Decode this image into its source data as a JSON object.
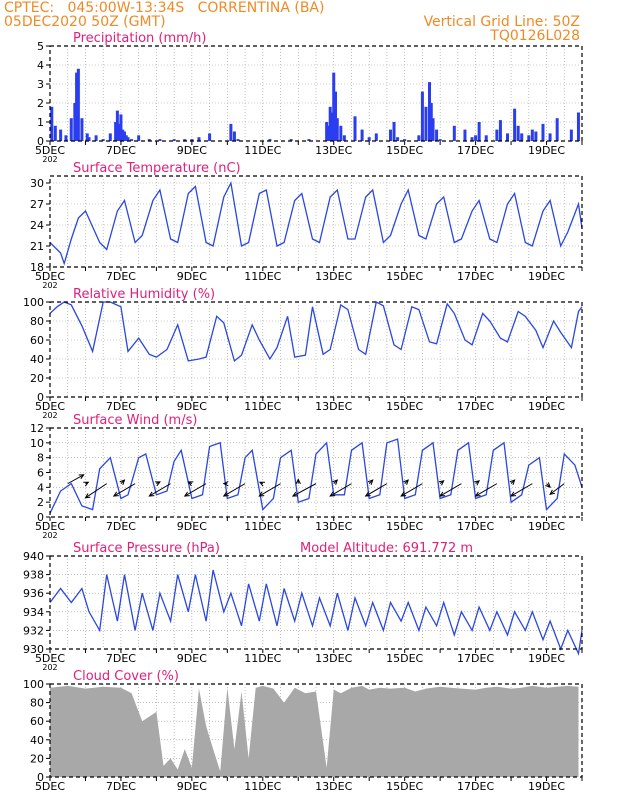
{
  "header": {
    "left_line1": "CPTEC:   045:00W-13:34S   CORRENTINA (BA)",
    "left_line2": "05DEC2020 50Z (GMT)",
    "right_line1": "Vertical Grid Line: 50Z",
    "right_line2": "TQ0126L028"
  },
  "colors": {
    "header": "#f08a24",
    "title": "#e0207a",
    "line": "#2a47e0",
    "bar": "#2a3ef0",
    "cloud": "#a8a8a8",
    "axis": "#000000"
  },
  "x_axis": {
    "labels": [
      "5DEC",
      "7DEC",
      "9DEC",
      "11DEC",
      "13DEC",
      "15DEC",
      "17DEC",
      "19DEC"
    ],
    "label_days": [
      0,
      2,
      4,
      6,
      8,
      10,
      12,
      14
    ],
    "range_days": [
      0,
      15
    ],
    "clipped_label": "202"
  },
  "chart_data": [
    {
      "type": "bar",
      "title": "Precipitation (mm/h)",
      "ylim": [
        0,
        5
      ],
      "yticks": [
        0,
        1,
        2,
        3,
        4,
        5
      ],
      "grid": true,
      "x": [
        0.05,
        0.15,
        0.3,
        0.45,
        0.6,
        0.7,
        0.75,
        0.8,
        0.9,
        1.05,
        1.1,
        1.3,
        1.5,
        1.7,
        1.85,
        1.9,
        1.95,
        2.0,
        2.05,
        2.1,
        2.15,
        2.2,
        2.3,
        2.5,
        2.8,
        3.1,
        3.5,
        3.8,
        4.0,
        4.2,
        4.5,
        5.1,
        5.2,
        5.3,
        6.2,
        6.8,
        7.3,
        7.8,
        7.85,
        7.9,
        7.95,
        8.0,
        8.05,
        8.1,
        8.2,
        8.3,
        8.6,
        8.8,
        9.0,
        9.2,
        9.6,
        9.7,
        9.8,
        10.0,
        10.4,
        10.5,
        10.6,
        10.7,
        10.75,
        10.8,
        10.9,
        11.0,
        11.4,
        11.7,
        11.9,
        12.0,
        12.1,
        12.3,
        12.6,
        12.7,
        12.9,
        13.1,
        13.2,
        13.3,
        13.5,
        13.6,
        13.7,
        13.9,
        14.1,
        14.3,
        14.7,
        14.9
      ],
      "values": [
        1.8,
        0.8,
        0.6,
        0.3,
        1.2,
        2.0,
        3.6,
        3.8,
        1.2,
        0.4,
        0.2,
        0.3,
        0.1,
        0.4,
        1.0,
        1.6,
        0.9,
        1.4,
        0.6,
        0.5,
        0.3,
        0.2,
        0.1,
        0.3,
        0.1,
        0.1,
        0.1,
        0.1,
        0.1,
        0.2,
        0.4,
        0.9,
        0.5,
        0.1,
        0.1,
        0.1,
        0.1,
        1.0,
        0.8,
        1.8,
        1.5,
        3.6,
        2.6,
        1.2,
        0.8,
        0.3,
        1.3,
        0.6,
        0.2,
        0.4,
        0.6,
        1.0,
        0.2,
        0.1,
        0.3,
        2.6,
        1.8,
        3.1,
        2.0,
        1.2,
        0.6,
        0.1,
        0.8,
        0.6,
        0.2,
        0.3,
        1.0,
        0.3,
        0.6,
        1.1,
        0.4,
        1.7,
        0.8,
        0.4,
        0.3,
        0.6,
        0.5,
        0.9,
        0.4,
        1.2,
        0.6,
        1.5
      ]
    },
    {
      "type": "line",
      "title": "Surface Temperature (nC)",
      "ylim": [
        18,
        31
      ],
      "yticks": [
        18,
        21,
        24,
        27,
        30
      ],
      "grid": true,
      "x": [
        0.0,
        0.3,
        0.4,
        0.6,
        0.8,
        1.0,
        1.4,
        1.6,
        1.9,
        2.1,
        2.4,
        2.6,
        2.9,
        3.1,
        3.4,
        3.6,
        3.9,
        4.1,
        4.4,
        4.6,
        4.9,
        5.1,
        5.4,
        5.6,
        5.9,
        6.1,
        6.4,
        6.6,
        6.9,
        7.1,
        7.4,
        7.6,
        7.9,
        8.1,
        8.4,
        8.6,
        8.9,
        9.1,
        9.4,
        9.6,
        9.9,
        10.1,
        10.4,
        10.6,
        10.9,
        11.1,
        11.4,
        11.6,
        11.9,
        12.1,
        12.4,
        12.6,
        12.9,
        13.1,
        13.4,
        13.6,
        13.9,
        14.1,
        14.4,
        14.6,
        14.9,
        15.0
      ],
      "values": [
        21.5,
        20,
        18.5,
        22,
        25,
        26,
        21.5,
        20.5,
        26,
        27.5,
        21.5,
        22.5,
        27.5,
        29,
        22,
        21.5,
        28.5,
        29.5,
        21.5,
        21,
        28,
        30,
        21,
        21.5,
        28.5,
        29,
        21,
        21.5,
        27.5,
        28.5,
        22,
        21.5,
        28,
        29,
        22,
        22,
        28,
        29,
        21.5,
        22.5,
        27,
        29,
        22.5,
        22,
        27,
        28,
        21.5,
        22,
        26,
        27.5,
        22,
        21.5,
        27,
        28.5,
        21.5,
        21,
        26,
        27.5,
        21,
        23,
        27,
        23.5
      ]
    },
    {
      "type": "line",
      "title": "Relative Humidity (%)",
      "ylim": [
        0,
        100
      ],
      "yticks": [
        0,
        20,
        40,
        60,
        80,
        100
      ],
      "grid": true,
      "x": [
        0.0,
        0.2,
        0.4,
        0.6,
        0.9,
        1.2,
        1.5,
        1.7,
        2.0,
        2.2,
        2.5,
        2.8,
        3.0,
        3.3,
        3.6,
        3.9,
        4.2,
        4.4,
        4.7,
        4.9,
        5.2,
        5.4,
        5.7,
        5.9,
        6.2,
        6.4,
        6.7,
        6.9,
        7.2,
        7.4,
        7.7,
        7.9,
        8.2,
        8.4,
        8.7,
        8.9,
        9.2,
        9.4,
        9.7,
        9.9,
        10.2,
        10.4,
        10.7,
        10.9,
        11.2,
        11.4,
        11.7,
        11.9,
        12.2,
        12.4,
        12.7,
        12.9,
        13.2,
        13.4,
        13.7,
        13.9,
        14.2,
        14.4,
        14.7,
        14.9,
        15.0
      ],
      "values": [
        88,
        95,
        100,
        97,
        75,
        48,
        100,
        100,
        95,
        48,
        62,
        45,
        42,
        50,
        76,
        38,
        40,
        42,
        85,
        78,
        38,
        44,
        76,
        60,
        40,
        52,
        85,
        42,
        44,
        95,
        45,
        50,
        97,
        92,
        50,
        45,
        100,
        96,
        55,
        50,
        95,
        92,
        58,
        56,
        98,
        88,
        60,
        55,
        88,
        80,
        62,
        58,
        90,
        85,
        70,
        52,
        80,
        68,
        52,
        90,
        95
      ]
    },
    {
      "type": "line",
      "title": "Surface Wind (m/s)",
      "ylim": [
        0,
        12
      ],
      "yticks": [
        0,
        2,
        4,
        6,
        8,
        10,
        12
      ],
      "grid": true,
      "x": [
        0.0,
        0.3,
        0.6,
        0.9,
        1.2,
        1.4,
        1.7,
        2.0,
        2.2,
        2.5,
        2.7,
        3.0,
        3.3,
        3.5,
        3.7,
        4.0,
        4.3,
        4.5,
        4.8,
        5.0,
        5.3,
        5.5,
        5.7,
        6.0,
        6.3,
        6.5,
        6.8,
        7.0,
        7.3,
        7.5,
        7.8,
        8.0,
        8.3,
        8.5,
        8.8,
        9.0,
        9.3,
        9.5,
        9.8,
        10.0,
        10.3,
        10.5,
        10.8,
        11.0,
        11.3,
        11.5,
        11.8,
        12.0,
        12.3,
        12.5,
        12.8,
        13.0,
        13.3,
        13.5,
        13.8,
        14.0,
        14.3,
        14.5,
        14.8,
        15.0
      ],
      "values": [
        0.5,
        3.5,
        4.5,
        1.5,
        1.0,
        6.5,
        8.0,
        2.5,
        3.0,
        8.0,
        8.5,
        3.0,
        3.5,
        7.5,
        9.0,
        2.5,
        3.0,
        9.5,
        10.0,
        2.5,
        3.0,
        8.0,
        9.0,
        1.0,
        2.5,
        8.0,
        9.0,
        2.0,
        2.5,
        8.5,
        10.0,
        3.0,
        3.0,
        9.0,
        10.0,
        2.5,
        3.0,
        10.0,
        10.5,
        2.5,
        3.0,
        9.0,
        10.0,
        2.5,
        3.0,
        9.0,
        10.0,
        2.5,
        3.0,
        9.0,
        10.0,
        2.0,
        3.0,
        7.0,
        8.0,
        1.0,
        2.5,
        8.5,
        7.0,
        4.0
      ],
      "arrows": [
        {
          "x": 0.5,
          "dx": 0.45,
          "dy": 0.25
        },
        {
          "x": 1.0,
          "dx": 0.08,
          "dy": 0.04
        },
        {
          "x": 1.6,
          "dx": -0.6,
          "dy": -0.4
        },
        {
          "x": 2.0,
          "dx": 0.1,
          "dy": 0.1
        },
        {
          "x": 2.4,
          "dx": -0.6,
          "dy": -0.35
        },
        {
          "x": 3.0,
          "dx": 0.1,
          "dy": 0.05
        },
        {
          "x": 3.4,
          "dx": -0.6,
          "dy": -0.35
        },
        {
          "x": 4.0,
          "dx": -0.1,
          "dy": 0.05
        },
        {
          "x": 4.4,
          "dx": -0.6,
          "dy": -0.35
        },
        {
          "x": 5.0,
          "dx": -0.1,
          "dy": 0.0
        },
        {
          "x": 5.5,
          "dx": -0.6,
          "dy": -0.35
        },
        {
          "x": 6.0,
          "dx": -0.08,
          "dy": 0.04
        },
        {
          "x": 6.5,
          "dx": -0.6,
          "dy": -0.35
        },
        {
          "x": 7.0,
          "dx": 0.0,
          "dy": 0.12
        },
        {
          "x": 7.5,
          "dx": -0.65,
          "dy": -0.35
        },
        {
          "x": 8.0,
          "dx": 0.1,
          "dy": 0.1
        },
        {
          "x": 8.5,
          "dx": -0.6,
          "dy": -0.35
        },
        {
          "x": 9.0,
          "dx": 0.1,
          "dy": 0.1
        },
        {
          "x": 9.5,
          "dx": -0.6,
          "dy": -0.35
        },
        {
          "x": 10.0,
          "dx": 0.1,
          "dy": 0.1
        },
        {
          "x": 10.5,
          "dx": -0.6,
          "dy": -0.35
        },
        {
          "x": 11.0,
          "dx": 0.1,
          "dy": 0.08
        },
        {
          "x": 11.6,
          "dx": -0.6,
          "dy": -0.35
        },
        {
          "x": 12.0,
          "dx": 0.1,
          "dy": 0.08
        },
        {
          "x": 12.6,
          "dx": -0.6,
          "dy": -0.35
        },
        {
          "x": 13.0,
          "dx": 0.1,
          "dy": 0.1
        },
        {
          "x": 13.6,
          "dx": -0.6,
          "dy": -0.35
        },
        {
          "x": 14.0,
          "dx": 0.1,
          "dy": -0.1
        },
        {
          "x": 14.5,
          "dx": -0.4,
          "dy": -0.3
        }
      ]
    },
    {
      "type": "line",
      "title": "Surface Pressure (hPa)",
      "annotation": "Model Altitude: 691.772 m",
      "ylim": [
        930,
        940
      ],
      "yticks": [
        930,
        932,
        934,
        936,
        938,
        940
      ],
      "grid": true,
      "x": [
        0.0,
        0.3,
        0.6,
        0.9,
        1.1,
        1.4,
        1.6,
        1.9,
        2.1,
        2.4,
        2.6,
        2.9,
        3.1,
        3.4,
        3.6,
        3.9,
        4.1,
        4.4,
        4.6,
        4.9,
        5.1,
        5.4,
        5.6,
        5.9,
        6.1,
        6.4,
        6.6,
        6.9,
        7.1,
        7.4,
        7.6,
        7.9,
        8.1,
        8.4,
        8.6,
        8.9,
        9.1,
        9.4,
        9.6,
        9.9,
        10.1,
        10.4,
        10.6,
        10.9,
        11.1,
        11.4,
        11.6,
        11.9,
        12.1,
        12.4,
        12.6,
        12.9,
        13.1,
        13.4,
        13.6,
        13.9,
        14.1,
        14.4,
        14.6,
        14.9,
        15.0
      ],
      "values": [
        935,
        936.5,
        935,
        936.5,
        934,
        932,
        938,
        933,
        938,
        932,
        936,
        932,
        936,
        933,
        938,
        934,
        938,
        933,
        938.5,
        934,
        936,
        932.5,
        937,
        933,
        937,
        932.5,
        936.5,
        933,
        936,
        932.5,
        935.5,
        932.5,
        936,
        932,
        935.5,
        932.5,
        935,
        932,
        935,
        933,
        935,
        932,
        934.5,
        932.5,
        935,
        931.5,
        934,
        932,
        934.5,
        932,
        934,
        931.5,
        934,
        932,
        934,
        931,
        933,
        930,
        932,
        929.5,
        932
      ]
    },
    {
      "type": "area",
      "title": "Cloud Cover (%)",
      "ylim": [
        0,
        100
      ],
      "yticks": [
        0,
        20,
        40,
        60,
        80,
        100
      ],
      "grid": true,
      "x": [
        0.0,
        0.5,
        1.0,
        1.5,
        2.0,
        2.3,
        2.6,
        3.0,
        3.2,
        3.4,
        3.6,
        3.8,
        4.0,
        4.2,
        4.4,
        4.6,
        4.8,
        5.0,
        5.2,
        5.4,
        5.6,
        5.8,
        6.0,
        6.3,
        6.6,
        6.9,
        7.2,
        7.5,
        7.8,
        8.0,
        8.2,
        8.5,
        8.8,
        9.0,
        9.3,
        9.6,
        10.0,
        10.3,
        10.6,
        11.0,
        11.3,
        11.6,
        12.0,
        12.3,
        12.6,
        13.0,
        13.3,
        13.6,
        14.0,
        14.3,
        14.6,
        14.9
      ],
      "values": [
        96,
        98,
        95,
        97,
        96,
        90,
        60,
        70,
        12,
        20,
        8,
        30,
        10,
        95,
        55,
        30,
        6,
        96,
        30,
        92,
        20,
        96,
        98,
        95,
        80,
        96,
        90,
        92,
        10,
        94,
        90,
        96,
        98,
        94,
        96,
        95,
        96,
        92,
        95,
        97,
        96,
        95,
        94,
        96,
        97,
        95,
        96,
        98,
        96,
        97,
        98,
        97
      ]
    }
  ]
}
